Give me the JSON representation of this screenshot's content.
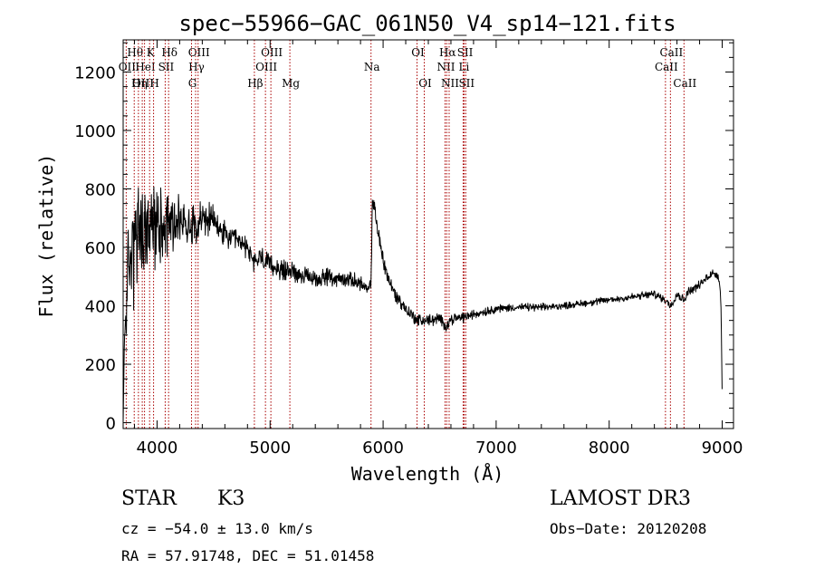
{
  "chart_data": {
    "type": "line",
    "title": "spec−55966−GAC_061N50_V4_sp14−121.fits",
    "xlabel": "Wavelength (Å)",
    "ylabel": "Flux (relative)",
    "xlim": [
      3700,
      9100
    ],
    "ylim": [
      -20,
      1310
    ],
    "x_ticks": [
      4000,
      5000,
      6000,
      7000,
      8000,
      9000
    ],
    "x_tick_labels": [
      "4000",
      "5000",
      "6000",
      "7000",
      "8000",
      "9000"
    ],
    "y_ticks": [
      0,
      200,
      400,
      600,
      800,
      1000,
      1200
    ],
    "y_tick_labels": [
      "0",
      "200",
      "400",
      "600",
      "800",
      "1000",
      "1200"
    ],
    "grid": false,
    "line_color": "#000000",
    "marker_color": "#aa0000",
    "spectrum_anchors": {
      "x": [
        3700,
        3712,
        3740,
        3760,
        3800,
        3850,
        3900,
        3950,
        4000,
        4050,
        4100,
        4150,
        4200,
        4300,
        4400,
        4500,
        4600,
        4700,
        4800,
        4861,
        4900,
        5000,
        5100,
        5200,
        5300,
        5400,
        5500,
        5600,
        5700,
        5800,
        5860,
        5893,
        5905,
        5930,
        5960,
        6000,
        6040,
        6080,
        6120,
        6200,
        6300,
        6400,
        6500,
        6563,
        6600,
        6700,
        6800,
        6900,
        7000,
        7200,
        7400,
        7600,
        7800,
        8000,
        8200,
        8400,
        8498,
        8542,
        8600,
        8662,
        8700,
        8800,
        8850,
        8900,
        8950,
        8975,
        8990,
        9000
      ],
      "y": [
        0,
        300,
        480,
        560,
        620,
        640,
        650,
        660,
        680,
        690,
        700,
        680,
        690,
        680,
        700,
        690,
        640,
        620,
        600,
        540,
        570,
        540,
        520,
        520,
        500,
        490,
        500,
        490,
        490,
        480,
        450,
        470,
        760,
        720,
        640,
        560,
        500,
        460,
        430,
        390,
        350,
        350,
        355,
        330,
        355,
        360,
        370,
        380,
        390,
        395,
        395,
        400,
        410,
        420,
        430,
        440,
        420,
        400,
        440,
        420,
        450,
        470,
        490,
        510,
        510,
        490,
        400,
        90
      ]
    },
    "spectrum_noise": {
      "x": [
        3700,
        3760,
        3800,
        3900,
        4000,
        4100,
        4200,
        4300,
        4400,
        4600,
        4800,
        5000,
        5500,
        5900,
        6000,
        6200,
        6500,
        7000,
        7500,
        8000,
        8500,
        9000
      ],
      "amplitude": [
        0,
        220,
        200,
        160,
        140,
        120,
        95,
        75,
        60,
        45,
        40,
        35,
        28,
        24,
        30,
        22,
        20,
        14,
        12,
        12,
        14,
        16
      ]
    },
    "line_markers": [
      {
        "label": "Hθ",
        "wavelength": 3798,
        "row": 1
      },
      {
        "label": "OII",
        "wavelength": 3727,
        "row": 2
      },
      {
        "label": "OIII",
        "wavelength": 3869,
        "row": 3
      },
      {
        "label": "Hη",
        "wavelength": 3835,
        "row": 3
      },
      {
        "label": "K",
        "wavelength": 3934,
        "row": 1
      },
      {
        "label": "HeI",
        "wavelength": 3889,
        "row": 2
      },
      {
        "label": "H",
        "wavelength": 3969,
        "row": 3
      },
      {
        "label": "Hδ",
        "wavelength": 4102,
        "row": 1
      },
      {
        "label": "SII",
        "wavelength": 4072,
        "row": 2
      },
      {
        "label": "OIII",
        "wavelength": 4363,
        "row": 1
      },
      {
        "label": "Hγ",
        "wavelength": 4341,
        "row": 2
      },
      {
        "label": "G",
        "wavelength": 4305,
        "row": 3
      },
      {
        "label": "OIII",
        "wavelength": 5007,
        "row": 1
      },
      {
        "label": "OIII",
        "wavelength": 4959,
        "row": 2
      },
      {
        "label": "Hβ",
        "wavelength": 4861,
        "row": 3
      },
      {
        "label": "Mg",
        "wavelength": 5175,
        "row": 3
      },
      {
        "label": "Na",
        "wavelength": 5893,
        "row": 2
      },
      {
        "label": "OI",
        "wavelength": 6300,
        "row": 1
      },
      {
        "label": "OI",
        "wavelength": 6364,
        "row": 3
      },
      {
        "label": "Hα",
        "wavelength": 6563,
        "row": 1
      },
      {
        "label": "SII",
        "wavelength": 6717,
        "row": 1
      },
      {
        "label": "NII",
        "wavelength": 6548,
        "row": 2
      },
      {
        "label": "Li",
        "wavelength": 6708,
        "row": 2
      },
      {
        "label": "NII",
        "wavelength": 6584,
        "row": 3
      },
      {
        "label": "SII",
        "wavelength": 6731,
        "row": 3
      },
      {
        "label": "CaII",
        "wavelength": 8542,
        "row": 1
      },
      {
        "label": "CaII",
        "wavelength": 8498,
        "row": 2
      },
      {
        "label": "CaII",
        "wavelength": 8662,
        "row": 3
      }
    ]
  },
  "info": {
    "class": "STAR",
    "subclass": "K3",
    "survey": "LAMOST DR3",
    "redshift": "cz = −54.0 ± 13.0 km/s",
    "obs_date": "Obs−Date: 20120208",
    "coords": "RA =  57.91748, DEC =  51.01458"
  }
}
